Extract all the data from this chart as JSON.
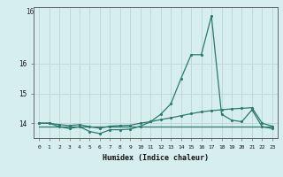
{
  "xlabel": "Humidex (Indice chaleur)",
  "background_color": "#d6eeee",
  "grid_color": "#c0d8d8",
  "line_color": "#2a7a6e",
  "xlim": [
    -0.5,
    23.5
  ],
  "ylim": [
    13.5,
    17.9
  ],
  "yticks": [
    14,
    15,
    16
  ],
  "ytick_labels": [
    "14",
    "15",
    "16"
  ],
  "ytick_top_label": "16",
  "xticks": [
    0,
    1,
    2,
    3,
    4,
    5,
    6,
    7,
    8,
    9,
    10,
    11,
    12,
    13,
    14,
    15,
    16,
    17,
    18,
    19,
    20,
    21,
    22,
    23
  ],
  "series_flat": {
    "x": [
      0,
      1,
      2,
      3,
      4,
      5,
      6,
      7,
      8,
      9,
      10,
      11,
      12,
      13,
      14,
      15,
      16,
      17,
      18,
      19,
      20,
      21,
      22,
      23
    ],
    "y": [
      13.9,
      13.9,
      13.9,
      13.9,
      13.9,
      13.9,
      13.9,
      13.9,
      13.9,
      13.9,
      13.9,
      13.9,
      13.9,
      13.9,
      13.9,
      13.9,
      13.9,
      13.9,
      13.9,
      13.9,
      13.9,
      13.9,
      13.9,
      13.9
    ]
  },
  "series_trend": {
    "x": [
      0,
      1,
      2,
      3,
      4,
      5,
      6,
      7,
      8,
      9,
      10,
      11,
      12,
      13,
      14,
      15,
      16,
      17,
      18,
      19,
      20,
      21,
      22,
      23
    ],
    "y": [
      14.0,
      14.0,
      13.95,
      13.92,
      13.95,
      13.88,
      13.83,
      13.9,
      13.92,
      13.93,
      14.0,
      14.05,
      14.12,
      14.18,
      14.25,
      14.32,
      14.38,
      14.42,
      14.45,
      14.48,
      14.5,
      14.52,
      14.0,
      13.9
    ]
  },
  "series_main": {
    "x": [
      0,
      1,
      2,
      3,
      4,
      5,
      6,
      7,
      8,
      9,
      10,
      11,
      12,
      13,
      14,
      15,
      16,
      17,
      18,
      19,
      20,
      21,
      22,
      23
    ],
    "y": [
      14.0,
      14.0,
      13.88,
      13.82,
      13.88,
      13.72,
      13.65,
      13.78,
      13.78,
      13.8,
      13.9,
      14.05,
      14.3,
      14.65,
      15.5,
      16.3,
      16.3,
      17.6,
      14.3,
      14.1,
      14.05,
      14.45,
      13.88,
      13.82
    ]
  }
}
